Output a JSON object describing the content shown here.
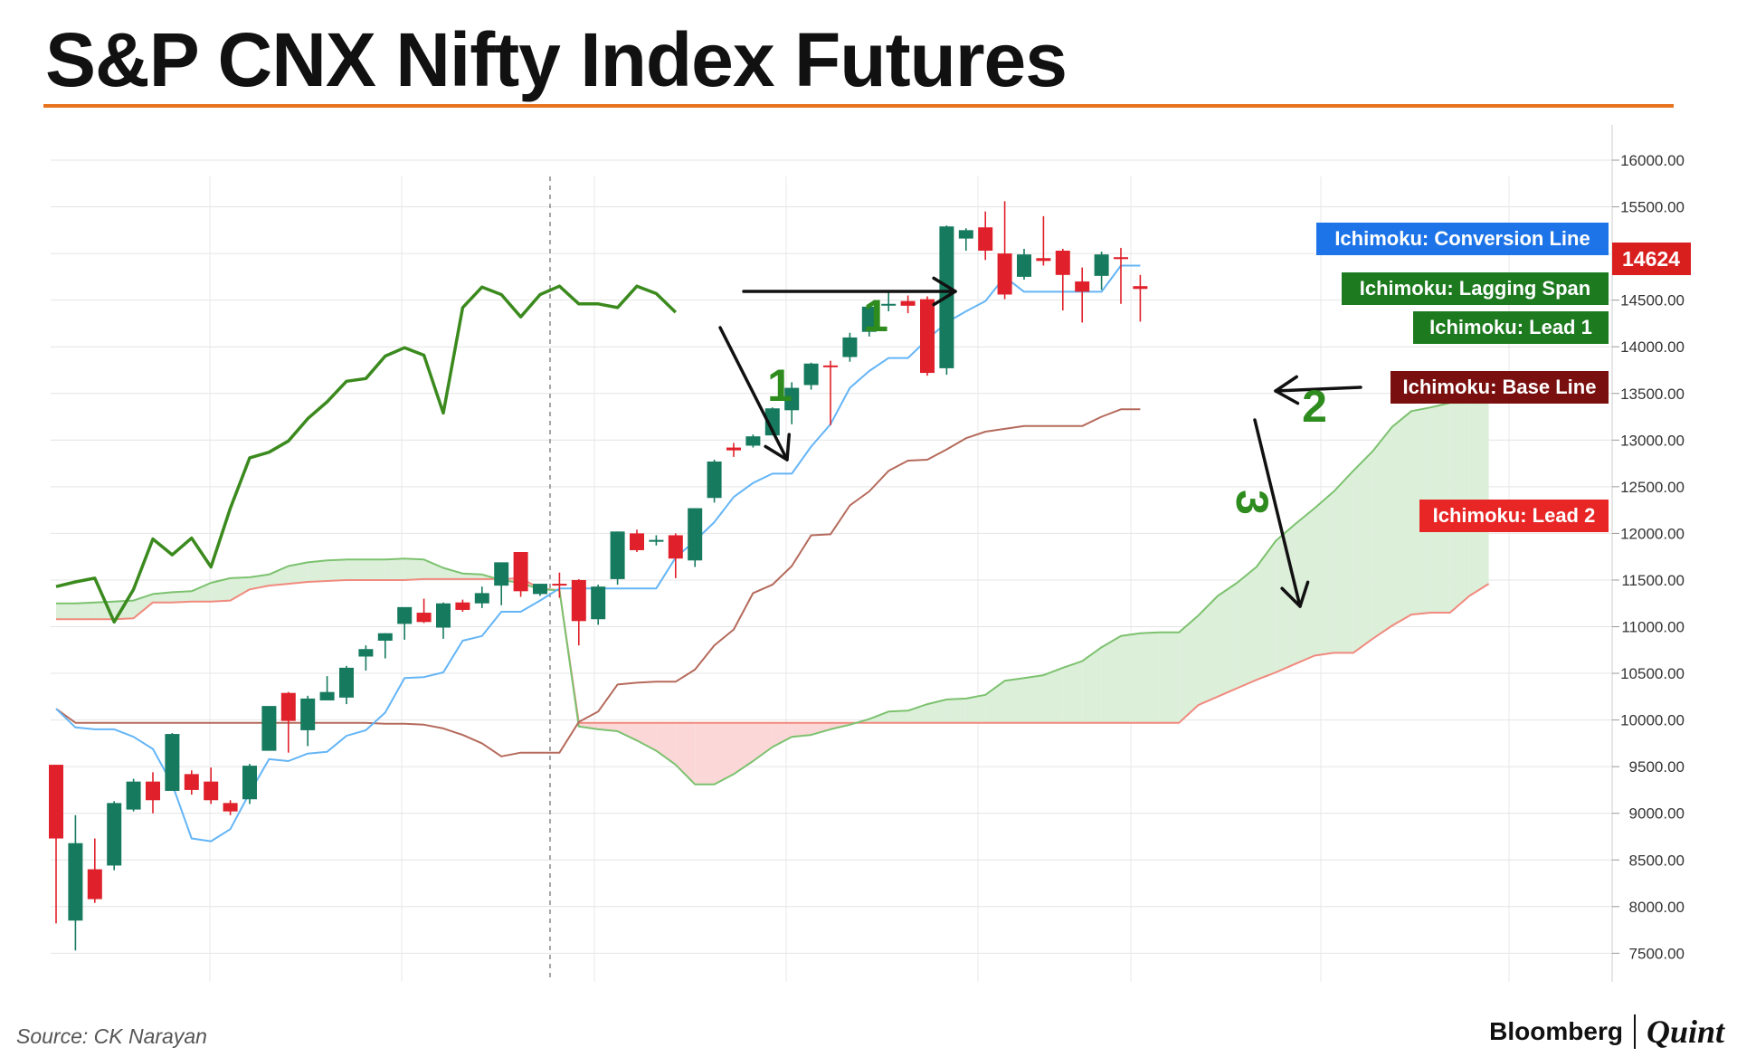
{
  "title": "S&P CNX Nifty Index Futures",
  "source": "Source: CK Narayan",
  "brand": {
    "left": "Bloomberg",
    "right": "Quint"
  },
  "colors": {
    "accent_rule": "#e8731e",
    "up_candle": "#167a5f",
    "down_candle": "#e0202a",
    "conversion_line": "#64b5f6",
    "base_line": "#b56a5c",
    "lagging_span": "#3b8a1e",
    "lead1": "#7cc26f",
    "lead2": "#f08a7e",
    "cloud_bull": "#dcefd9",
    "cloud_bear": "#fbd7d7",
    "arrow": "#111111",
    "annotation_number": "#2e8b1e"
  },
  "chart_data": {
    "type": "candlestick",
    "y_ticks": [
      "16000.00",
      "15500.00",
      "15000.00",
      "14500.00",
      "14000.00",
      "13500.00",
      "13000.00",
      "12500.00",
      "12000.00",
      "11500.00",
      "11000.00",
      "10500.00",
      "10000.00",
      "9500.00",
      "9000.00",
      "8500.00",
      "8000.00",
      "7500.00"
    ],
    "ylim": [
      7300,
      16300
    ],
    "grid": true,
    "price_tag": "14624",
    "legend": [
      {
        "label": "Ichimoku: Conversion Line",
        "color": "#1d74e8"
      },
      {
        "label": "Ichimoku: Lagging Span",
        "color": "#1d7a1f"
      },
      {
        "label": "Ichimoku: Lead 1",
        "color": "#1d7a1f"
      },
      {
        "label": "Ichimoku: Base Line",
        "color": "#7a0f0f"
      },
      {
        "label": "Ichimoku: Lead 2",
        "color": "#e82626"
      }
    ],
    "candles": [
      {
        "o": 9520,
        "h": 9520,
        "l": 7820,
        "c": 8730
      },
      {
        "o": 7850,
        "h": 8980,
        "l": 7530,
        "c": 8680
      },
      {
        "o": 8400,
        "h": 8730,
        "l": 8040,
        "c": 8080
      },
      {
        "o": 8440,
        "h": 9130,
        "l": 8390,
        "c": 9110
      },
      {
        "o": 9040,
        "h": 9370,
        "l": 9020,
        "c": 9340
      },
      {
        "o": 9340,
        "h": 9440,
        "l": 9000,
        "c": 9140
      },
      {
        "o": 9240,
        "h": 9860,
        "l": 9240,
        "c": 9850
      },
      {
        "o": 9420,
        "h": 9460,
        "l": 9200,
        "c": 9250
      },
      {
        "o": 9340,
        "h": 9490,
        "l": 9100,
        "c": 9140
      },
      {
        "o": 9110,
        "h": 9140,
        "l": 8980,
        "c": 9020
      },
      {
        "o": 9150,
        "h": 9530,
        "l": 9100,
        "c": 9510
      },
      {
        "o": 9670,
        "h": 10140,
        "l": 9670,
        "c": 10150
      },
      {
        "o": 10290,
        "h": 10300,
        "l": 9650,
        "c": 9990
      },
      {
        "o": 9890,
        "h": 10260,
        "l": 9720,
        "c": 10230
      },
      {
        "o": 10210,
        "h": 10470,
        "l": 10220,
        "c": 10300
      },
      {
        "o": 10240,
        "h": 10580,
        "l": 10170,
        "c": 10560
      },
      {
        "o": 10680,
        "h": 10800,
        "l": 10530,
        "c": 10760
      },
      {
        "o": 10850,
        "h": 10930,
        "l": 10660,
        "c": 10930
      },
      {
        "o": 11030,
        "h": 11130,
        "l": 10860,
        "c": 11210
      },
      {
        "o": 11150,
        "h": 11300,
        "l": 11040,
        "c": 11050
      },
      {
        "o": 10990,
        "h": 11260,
        "l": 10870,
        "c": 11250
      },
      {
        "o": 11260,
        "h": 11290,
        "l": 11160,
        "c": 11180
      },
      {
        "o": 11250,
        "h": 11430,
        "l": 11200,
        "c": 11360
      },
      {
        "o": 11440,
        "h": 11680,
        "l": 11230,
        "c": 11690
      },
      {
        "o": 11800,
        "h": 11800,
        "l": 11320,
        "c": 11380
      },
      {
        "o": 11350,
        "h": 11460,
        "l": 11330,
        "c": 11460
      },
      {
        "o": 11460,
        "h": 11580,
        "l": 11310,
        "c": 11450
      },
      {
        "o": 11500,
        "h": 11510,
        "l": 10800,
        "c": 11060
      },
      {
        "o": 11080,
        "h": 11450,
        "l": 11020,
        "c": 11430
      },
      {
        "o": 11510,
        "h": 12020,
        "l": 11450,
        "c": 12020
      },
      {
        "o": 12000,
        "h": 12040,
        "l": 11800,
        "c": 11820
      },
      {
        "o": 11910,
        "h": 11980,
        "l": 11870,
        "c": 11930
      },
      {
        "o": 11980,
        "h": 12000,
        "l": 11520,
        "c": 11730
      },
      {
        "o": 11710,
        "h": 12270,
        "l": 11640,
        "c": 12270
      },
      {
        "o": 12380,
        "h": 12790,
        "l": 12330,
        "c": 12770
      },
      {
        "o": 12920,
        "h": 12970,
        "l": 12820,
        "c": 12890
      },
      {
        "o": 12940,
        "h": 13060,
        "l": 12920,
        "c": 13040
      },
      {
        "o": 13050,
        "h": 13350,
        "l": 13050,
        "c": 13340
      },
      {
        "o": 13320,
        "h": 13620,
        "l": 13170,
        "c": 13560
      },
      {
        "o": 13590,
        "h": 13830,
        "l": 13540,
        "c": 13820
      },
      {
        "o": 13800,
        "h": 13850,
        "l": 13160,
        "c": 13790
      },
      {
        "o": 13890,
        "h": 14150,
        "l": 13840,
        "c": 14100
      },
      {
        "o": 14160,
        "h": 14440,
        "l": 14110,
        "c": 14430
      },
      {
        "o": 14460,
        "h": 14590,
        "l": 14380,
        "c": 14460
      },
      {
        "o": 14490,
        "h": 14550,
        "l": 14360,
        "c": 14440
      },
      {
        "o": 14510,
        "h": 14540,
        "l": 13690,
        "c": 13720
      },
      {
        "o": 13770,
        "h": 15300,
        "l": 13700,
        "c": 15290
      },
      {
        "o": 15160,
        "h": 15270,
        "l": 15030,
        "c": 15250
      },
      {
        "o": 15280,
        "h": 15450,
        "l": 14930,
        "c": 15030
      },
      {
        "o": 15000,
        "h": 15560,
        "l": 14510,
        "c": 14560
      },
      {
        "o": 14750,
        "h": 15050,
        "l": 14720,
        "c": 14990
      },
      {
        "o": 14950,
        "h": 15400,
        "l": 14870,
        "c": 14920
      },
      {
        "o": 15030,
        "h": 15050,
        "l": 14390,
        "c": 14770
      },
      {
        "o": 14700,
        "h": 14850,
        "l": 14260,
        "c": 14590
      },
      {
        "o": 14760,
        "h": 15020,
        "l": 14610,
        "c": 14990
      },
      {
        "o": 14960,
        "h": 15060,
        "l": 14460,
        "c": 14940
      },
      {
        "o": 14650,
        "h": 14770,
        "l": 14270,
        "c": 14620
      }
    ],
    "conversion_line": [
      10120,
      9920,
      9900,
      9900,
      9820,
      9690,
      9310,
      8730,
      8700,
      8830,
      9220,
      9580,
      9560,
      9640,
      9660,
      9830,
      9890,
      10080,
      10450,
      10460,
      10510,
      10850,
      10900,
      11160,
      11160,
      11280,
      11410,
      11410,
      11410,
      11410,
      11410,
      11410,
      11740,
      11920,
      12120,
      12390,
      12540,
      12640,
      12640,
      12930,
      13170,
      13560,
      13740,
      13880,
      13880,
      14080,
      14260,
      14380,
      14490,
      14750,
      14590,
      14590,
      14590,
      14590,
      14590,
      14870,
      14870
    ],
    "base_line": [
      10120,
      9970,
      9970,
      9970,
      9970,
      9970,
      9970,
      9970,
      9970,
      9970,
      9970,
      9970,
      9970,
      9970,
      9970,
      9970,
      9970,
      9960,
      9960,
      9950,
      9910,
      9840,
      9750,
      9610,
      9650,
      9650,
      9650,
      9980,
      10090,
      10380,
      10400,
      10410,
      10410,
      10540,
      10800,
      10970,
      11360,
      11450,
      11650,
      11980,
      11990,
      12300,
      12450,
      12670,
      12780,
      12790,
      12900,
      13020,
      13090,
      13120,
      13150,
      13150,
      13150,
      13150,
      13250,
      13330,
      13330
    ],
    "lagging_span": [
      11430,
      11480,
      11520,
      11050,
      11400,
      11940,
      11770,
      11950,
      11640,
      12270,
      12810,
      12870,
      12990,
      13230,
      13410,
      13630,
      13660,
      13900,
      13990,
      13910,
      13290,
      14420,
      14640,
      14560,
      14320,
      14560,
      14650,
      14460,
      14460,
      14420,
      14650,
      14570,
      14370
    ],
    "lead1": [
      11250,
      11250,
      11260,
      11270,
      11280,
      11350,
      11370,
      11380,
      11470,
      11520,
      11530,
      11560,
      11650,
      11690,
      11710,
      11720,
      11720,
      11720,
      11730,
      11720,
      11630,
      11570,
      11560,
      11500,
      11470,
      11400,
      11390,
      9930,
      9900,
      9880,
      9780,
      9670,
      9520,
      9310,
      9310,
      9420,
      9560,
      9710,
      9820,
      9840,
      9900,
      9950,
      10010,
      10090,
      10100,
      10170,
      10220,
      10230,
      10270,
      10420,
      10450,
      10480,
      10560,
      10630,
      10780,
      10900,
      10930,
      10940,
      10940,
      11120,
      11330,
      11470,
      11640,
      11920,
      12100,
      12270,
      12450,
      12670,
      12880,
      13140,
      13310,
      13350,
      13400,
      13450,
      13520
    ],
    "lead2": [
      11080,
      11080,
      11080,
      11080,
      11090,
      11260,
      11260,
      11270,
      11270,
      11280,
      11400,
      11440,
      11460,
      11480,
      11490,
      11500,
      11500,
      11500,
      11500,
      11510,
      11510,
      11510,
      11510,
      11510,
      11520,
      11410,
      11390,
      9970,
      9970,
      9970,
      9970,
      9970,
      9970,
      9970,
      9970,
      9970,
      9970,
      9970,
      9970,
      9970,
      9970,
      9970,
      9970,
      9970,
      9970,
      9970,
      9970,
      9970,
      9970,
      9970,
      9970,
      9970,
      9970,
      9970,
      9970,
      9970,
      9970,
      9970,
      9970,
      10160,
      10250,
      10340,
      10430,
      10510,
      10600,
      10690,
      10720,
      10720,
      10870,
      11010,
      11130,
      11150,
      11150,
      11330,
      11460
    ]
  },
  "annotations": [
    {
      "text": "1",
      "kind": "number"
    },
    {
      "text": "1",
      "kind": "number"
    },
    {
      "text": "2",
      "kind": "number"
    },
    {
      "text": "3",
      "kind": "number"
    }
  ]
}
